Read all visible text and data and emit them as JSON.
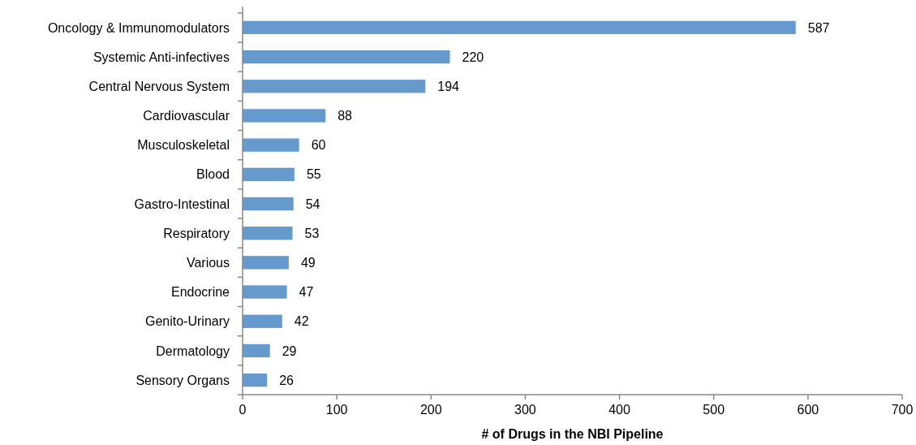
{
  "chart_data": {
    "type": "bar",
    "orientation": "horizontal",
    "xlabel": "# of Drugs in the NBI Pipeline",
    "categories": [
      "Oncology & Immunomodulators",
      "Systemic Anti-infectives",
      "Central Nervous System",
      "Cardiovascular",
      "Musculoskeletal",
      "Blood",
      "Gastro-Intestinal",
      "Respiratory",
      "Various",
      "Endocrine",
      "Genito-Urinary",
      "Dermatology",
      "Sensory Organs"
    ],
    "values": [
      587,
      220,
      194,
      88,
      60,
      55,
      54,
      53,
      49,
      47,
      42,
      29,
      26
    ],
    "color": "#6699cc",
    "xlim": [
      0,
      700
    ],
    "xticks": [
      0,
      100,
      200,
      300,
      400,
      500,
      600,
      700
    ],
    "data_labels": true
  }
}
